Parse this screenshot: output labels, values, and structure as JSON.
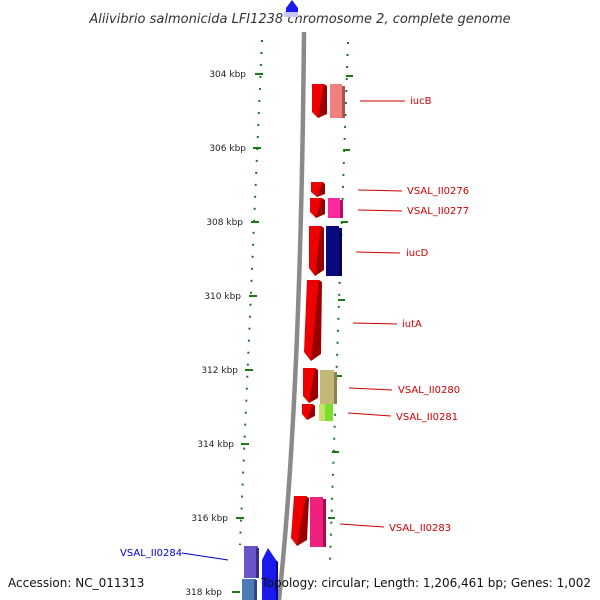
{
  "title": "Aliivibrio salmonicida LFI1238 chromosome 2, complete genome",
  "footer": {
    "accession": "Accession: NC_011313",
    "summary": "Topology: circular; Length: 1,206,461 bp; Genes: 1,002"
  },
  "colors": {
    "backbone": "#8a8a8a",
    "tick": "#1a7a1a",
    "label_red": "#cc0000",
    "label_blue": "#0000cc"
  },
  "ticks": [
    "304 kbp",
    "306 kbp",
    "308 kbp",
    "310 kbp",
    "312 kbp",
    "314 kbp",
    "316 kbp",
    "318 kbp"
  ],
  "gene_labels": [
    {
      "text": "iucB",
      "color": "#cc0000"
    },
    {
      "text": "VSAL_II0276",
      "color": "#cc0000"
    },
    {
      "text": "VSAL_II0277",
      "color": "#cc0000"
    },
    {
      "text": "iucD",
      "color": "#cc0000"
    },
    {
      "text": "iutA",
      "color": "#cc0000"
    },
    {
      "text": "VSAL_II0280",
      "color": "#cc0000"
    },
    {
      "text": "VSAL_II0281",
      "color": "#cc0000"
    },
    {
      "text": "VSAL_II0283",
      "color": "#cc0000"
    },
    {
      "text": "VSAL_II0284",
      "color": "#0000cc"
    }
  ]
}
